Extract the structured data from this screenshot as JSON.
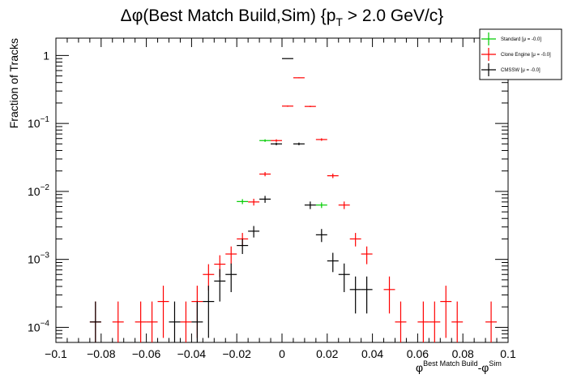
{
  "chart_data": {
    "type": "scatter",
    "title": {
      "prefix": "Δφ(Best Match Build,Sim) {p",
      "sub": "T",
      "suffix": " > 2.0 GeV/c}"
    },
    "ylabel": "Fraction of Tracks",
    "xlabel": {
      "p1": "φ",
      "s1": "Best Match Build",
      "p2": "-φ",
      "s2": "Sim"
    },
    "xlim": [
      -0.1,
      0.1
    ],
    "yscale": "log",
    "ylim": [
      6e-05,
      1.8
    ],
    "x_ticks": [
      -0.1,
      -0.08,
      -0.06,
      -0.04,
      -0.02,
      0,
      0.02,
      0.04,
      0.06,
      0.08,
      0.1
    ],
    "x_tick_labels": [
      "−0.1",
      "−0.08",
      "−0.06",
      "−0.04",
      "−0.02",
      "0",
      "0.02",
      "0.04",
      "0.06",
      "0.08",
      "0.1"
    ],
    "y_tick_labels": [
      {
        "base": "1",
        "exp": ""
      },
      {
        "base": "10",
        "exp": "−1"
      },
      {
        "base": "10",
        "exp": "−2"
      },
      {
        "base": "10",
        "exp": "−3"
      },
      {
        "base": "10",
        "exp": "−4"
      }
    ],
    "bin_width": 0.005,
    "grid": false,
    "legend_position": "top-right",
    "series": [
      {
        "name": "Standard  [μ = -0.0]",
        "color": "#00cc00",
        "points": [
          {
            "x": -0.0175,
            "y": 0.0071,
            "err": 0.0006
          },
          {
            "x": -0.0075,
            "y": 0.056,
            "err": 0.0025
          },
          {
            "x": 0.0175,
            "y": 0.0063,
            "err": 0.0006
          }
        ]
      },
      {
        "name": "Clone Engine  [μ = -0.0]",
        "color": "#ff0000",
        "points": [
          {
            "x": -0.0825,
            "y": 0.00012,
            "err": 0.00012
          },
          {
            "x": -0.0725,
            "y": 0.00012,
            "err": 0.00012
          },
          {
            "x": -0.0625,
            "y": 0.00012,
            "err": 0.00012
          },
          {
            "x": -0.0575,
            "y": 0.00012,
            "err": 0.00012
          },
          {
            "x": -0.0525,
            "y": 0.00024,
            "err": 0.00017
          },
          {
            "x": -0.0425,
            "y": 0.00012,
            "err": 0.00012
          },
          {
            "x": -0.0375,
            "y": 0.00024,
            "err": 0.00017
          },
          {
            "x": -0.0325,
            "y": 0.0006,
            "err": 0.00025
          },
          {
            "x": -0.0275,
            "y": 0.00085,
            "err": 0.0003
          },
          {
            "x": -0.0225,
            "y": 0.0012,
            "err": 0.00035
          },
          {
            "x": -0.0175,
            "y": 0.002,
            "err": 0.00045
          },
          {
            "x": -0.0125,
            "y": 0.007,
            "err": 0.0008
          },
          {
            "x": -0.0075,
            "y": 0.018,
            "err": 0.0013
          },
          {
            "x": -0.0025,
            "y": 0.056,
            "err": 0.0025
          },
          {
            "x": 0.0025,
            "y": 0.18,
            "err": 0.004
          },
          {
            "x": 0.0075,
            "y": 0.47,
            "err": 0.007
          },
          {
            "x": 0.0125,
            "y": 0.178,
            "err": 0.004
          },
          {
            "x": 0.0175,
            "y": 0.058,
            "err": 0.0025
          },
          {
            "x": 0.0225,
            "y": 0.017,
            "err": 0.0013
          },
          {
            "x": 0.0275,
            "y": 0.0063,
            "err": 0.0008
          },
          {
            "x": 0.0325,
            "y": 0.002,
            "err": 0.00045
          },
          {
            "x": 0.0375,
            "y": 0.0012,
            "err": 0.00035
          },
          {
            "x": 0.0475,
            "y": 0.00036,
            "err": 0.0002
          },
          {
            "x": 0.0525,
            "y": 0.00012,
            "err": 0.00012
          },
          {
            "x": 0.0625,
            "y": 0.00012,
            "err": 0.00012
          },
          {
            "x": 0.0675,
            "y": 0.00012,
            "err": 0.00012
          },
          {
            "x": 0.0725,
            "y": 0.00024,
            "err": 0.00017
          },
          {
            "x": 0.0775,
            "y": 0.00012,
            "err": 0.00012
          },
          {
            "x": 0.0925,
            "y": 0.00012,
            "err": 0.00012
          }
        ]
      },
      {
        "name": "CMSSW  [μ = -0.0]",
        "color": "#000000",
        "points": [
          {
            "x": -0.0825,
            "y": 0.00012,
            "err": 0.00012
          },
          {
            "x": -0.0475,
            "y": 0.00012,
            "err": 0.00012
          },
          {
            "x": -0.0375,
            "y": 0.00012,
            "err": 0.00012
          },
          {
            "x": -0.0325,
            "y": 0.00024,
            "err": 0.00017
          },
          {
            "x": -0.0275,
            "y": 0.00048,
            "err": 0.00024
          },
          {
            "x": -0.0225,
            "y": 0.0006,
            "err": 0.00027
          },
          {
            "x": -0.0175,
            "y": 0.0016,
            "err": 0.0004
          },
          {
            "x": -0.0125,
            "y": 0.0026,
            "err": 0.0005
          },
          {
            "x": -0.0075,
            "y": 0.0077,
            "err": 0.0009
          },
          {
            "x": -0.0025,
            "y": 0.05,
            "err": 0.0023
          },
          {
            "x": 0.0025,
            "y": 0.9,
            "err": 0.01
          },
          {
            "x": 0.0075,
            "y": 0.05,
            "err": 0.0023
          },
          {
            "x": 0.0125,
            "y": 0.0063,
            "err": 0.0008
          },
          {
            "x": 0.0175,
            "y": 0.0023,
            "err": 0.0005
          },
          {
            "x": 0.0225,
            "y": 0.00095,
            "err": 0.0003
          },
          {
            "x": 0.0275,
            "y": 0.0006,
            "err": 0.00027
          },
          {
            "x": 0.0325,
            "y": 0.00036,
            "err": 0.0002
          },
          {
            "x": 0.0375,
            "y": 0.00036,
            "err": 0.0002
          }
        ]
      }
    ]
  }
}
